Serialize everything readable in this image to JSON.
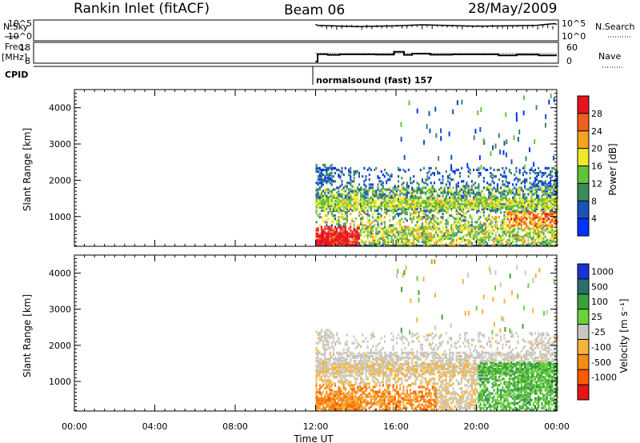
{
  "header": {
    "station": "Rankin Inlet (fitACF)",
    "beam": "Beam 06",
    "date": "28/May/2009"
  },
  "strip": {
    "nsky_label": "N.Sky",
    "nsearch_label": "N.Search",
    "freq_label_1": "Freq.",
    "freq_label_2": "[MHz]",
    "nave_label": "Nave",
    "cpid_label": "CPID",
    "nsky_ticks": [
      "10^5",
      "10^0"
    ],
    "nsearch_ticks": [
      "10^5",
      "10^0"
    ],
    "freq_ticks": [
      "18",
      "8"
    ],
    "nave_ticks": [
      "60",
      "0"
    ],
    "cpid_text": "normalsound (fast) 157"
  },
  "chart_data": [
    {
      "type": "line",
      "name": "N.Sky / N.Search",
      "x_unit": "hours UT",
      "series": [
        {
          "name": "N.Sky",
          "x": [
            12.0,
            12.1,
            14,
            16,
            17.3,
            20,
            23,
            23.6,
            23.9,
            24
          ],
          "y": [
            4.2,
            3.9,
            3.6,
            3.8,
            4.1,
            3.7,
            3.9,
            4.3,
            4.4,
            4.2
          ]
        }
      ]
    },
    {
      "type": "line",
      "name": "Freq / Nave",
      "series": [
        {
          "name": "Freq. [MHz]",
          "x": [
            12.0,
            12.1,
            12.6,
            13.2,
            15.0,
            15.9,
            16.4,
            16.8,
            17.7,
            18.8,
            21.1,
            22.0,
            23.1,
            24.0
          ],
          "y": [
            8.0,
            12.2,
            11.8,
            12.1,
            12.0,
            13.6,
            11.8,
            12.5,
            11.9,
            12.1,
            11.5,
            12.0,
            11.5,
            11.5
          ]
        },
        {
          "name": "Nave",
          "x": [
            12.0,
            24.0
          ],
          "y": [
            28,
            28
          ]
        }
      ]
    },
    {
      "type": "heatmap",
      "name": "Power",
      "ylabel": "Slant Range [km]",
      "yticks": [
        "1000",
        "2000",
        "3000",
        "4000"
      ],
      "ylim": [
        180,
        4500
      ],
      "colorbar_label": "Power [dB]",
      "colorbar_ticks": [
        "4",
        "8",
        "12",
        "16",
        "20",
        "24",
        "28"
      ],
      "colors": [
        "#0033ff",
        "#1a52b8",
        "#3a8a5a",
        "#63c23a",
        "#f0e62a",
        "#f5a21e",
        "#f0601e",
        "#e6141e"
      ],
      "bands": [
        {
          "t0": 12.0,
          "t1": 14.0,
          "r0": 180,
          "r1": 700,
          "level": "high"
        },
        {
          "t0": 12.2,
          "t1": 24.0,
          "r0": 1100,
          "r1": 1800,
          "level": "mid"
        },
        {
          "t0": 12.0,
          "t1": 24.0,
          "r0": 500,
          "r1": 1100,
          "level": "mixed"
        },
        {
          "t0": 22.0,
          "t1": 24.0,
          "r0": 500,
          "r1": 1400,
          "level": "high"
        }
      ]
    },
    {
      "type": "heatmap",
      "name": "Velocity",
      "xlabel": "Time UT",
      "ylabel": "Slant Range [km]",
      "x_ticks": [
        "00:00",
        "04:00",
        "08:00",
        "12:00",
        "16:00",
        "20:00",
        "00:00"
      ],
      "yticks": [
        "1000",
        "2000",
        "3000",
        "4000"
      ],
      "ylim": [
        180,
        4500
      ],
      "colorbar_label": "Velocity [m s⁻¹]",
      "colorbar_ticks": [
        "1000",
        "500",
        "100",
        "25",
        "-25",
        "-100",
        "-500",
        "-1000"
      ],
      "colors": [
        "#1a33d6",
        "#2a6e6e",
        "#3aa03a",
        "#6ad23a",
        "#c8c8c0",
        "#f5b43a",
        "#f58a14",
        "#ff5a00",
        "#e61414"
      ]
    }
  ]
}
